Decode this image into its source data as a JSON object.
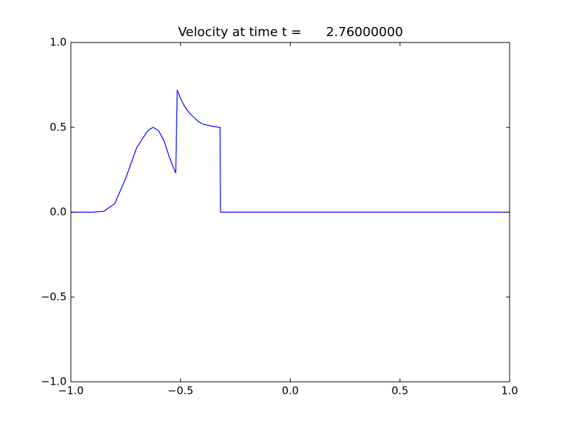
{
  "chart_data": {
    "type": "line",
    "title": "Velocity at time t =      2.76000000",
    "x": [
      -1,
      -0.9,
      -0.85,
      -0.8,
      -0.75,
      -0.7,
      -0.65,
      -0.625,
      -0.6,
      -0.575,
      -0.55,
      -0.522,
      -0.515,
      -0.5,
      -0.48,
      -0.46,
      -0.44,
      -0.42,
      -0.4,
      -0.37,
      -0.34,
      -0.32,
      -0.318,
      -0.2,
      1.0
    ],
    "series": [
      {
        "color": "#0000ff",
        "values": [
          0,
          0,
          0.005,
          0.05,
          0.2,
          0.38,
          0.48,
          0.5,
          0.48,
          0.42,
          0.32,
          0.23,
          0.72,
          0.67,
          0.62,
          0.585,
          0.56,
          0.535,
          0.52,
          0.51,
          0.503,
          0.5,
          0,
          0,
          0
        ]
      }
    ],
    "xlim": [
      -1,
      1
    ],
    "ylim": [
      -1,
      1
    ],
    "xticks": [
      {
        "value": -1,
        "label": "−1.0"
      },
      {
        "value": -0.5,
        "label": "−0.5"
      },
      {
        "value": 0,
        "label": "0.0"
      },
      0.5,
      {
        "value": 1,
        "label": "1.0"
      }
    ],
    "yticks": [
      {
        "value": -1,
        "label": "−1.0"
      },
      {
        "value": -0.5,
        "label": "−0.5"
      },
      {
        "value": 0,
        "label": "0.0"
      },
      0.5,
      {
        "value": 1,
        "label": "1.0"
      }
    ],
    "grid": false
  }
}
